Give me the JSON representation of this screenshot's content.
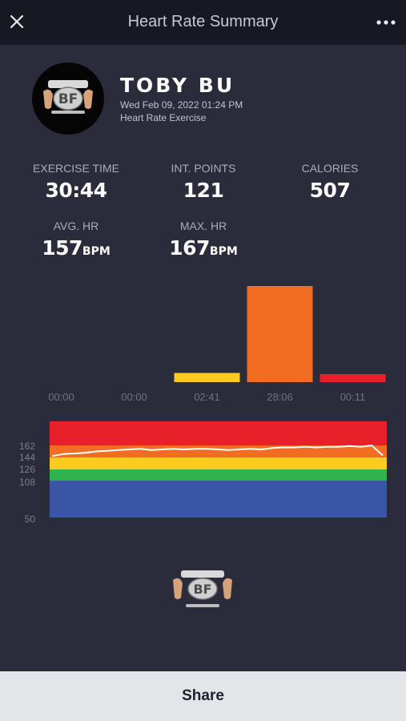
{
  "header": {
    "title": "Heart Rate Summary"
  },
  "profile": {
    "name": "TOBY BU",
    "date": "Wed Feb 09, 2022 01:24 PM",
    "subtitle": "Heart Rate Exercise",
    "logo_text": "BF"
  },
  "stats": {
    "exercise_time": {
      "label": "EXERCISE TIME",
      "value": "30:44"
    },
    "int_points": {
      "label": "INT. POINTS",
      "value": "121"
    },
    "calories": {
      "label": "CALORIES",
      "value": "507"
    },
    "avg_hr": {
      "label": "AVG. HR",
      "value": "157",
      "unit": "BPM"
    },
    "max_hr": {
      "label": "MAX. HR",
      "value": "167",
      "unit": "BPM"
    }
  },
  "colors": {
    "zone_gray": "#8d8f96",
    "zone_blue": "#3a55a6",
    "zone_green": "#2fb34a",
    "zone_yellow": "#fbcb1e",
    "zone_orange": "#f26d22",
    "zone_red": "#e8202a",
    "hr_line": "#ffffff"
  },
  "chart_data": [
    {
      "type": "bar",
      "categories": [
        "00:00",
        "00:00",
        "02:41",
        "28:06",
        "00:11"
      ],
      "values": [
        0,
        0,
        161,
        1686,
        11
      ],
      "value_unit": "seconds",
      "colors": [
        "#8d8f96",
        "#3a55a6",
        "#fbcb1e",
        "#f26d22",
        "#e8202a"
      ],
      "title": "",
      "xlabel": "",
      "ylabel": ""
    },
    {
      "type": "line",
      "title": "",
      "y_ticks": [
        50,
        108,
        126,
        144,
        162
      ],
      "ylim": [
        50,
        180
      ],
      "zones": [
        {
          "from": 50,
          "to": 108,
          "color": "#3a55a6"
        },
        {
          "from": 108,
          "to": 126,
          "color": "#2fb34a"
        },
        {
          "from": 126,
          "to": 144,
          "color": "#fbcb1e"
        },
        {
          "from": 144,
          "to": 162,
          "color": "#f26d22"
        },
        {
          "from": 162,
          "to": 180,
          "color": "#e8202a"
        }
      ],
      "series": [
        {
          "x": [
            0,
            1,
            2,
            3,
            4,
            5,
            6,
            7,
            8,
            9,
            10,
            11,
            12,
            13,
            14,
            15,
            16,
            17,
            18,
            19,
            20,
            21,
            22,
            23,
            24,
            25,
            26,
            27,
            28,
            29,
            30
          ],
          "values": [
            146,
            149,
            150,
            151,
            153,
            154,
            155,
            156,
            157,
            155,
            156,
            157,
            156,
            157,
            157,
            156,
            155,
            156,
            157,
            156,
            158,
            159,
            159,
            160,
            159,
            160,
            160,
            161,
            160,
            162,
            147
          ]
        }
      ]
    }
  ]
}
